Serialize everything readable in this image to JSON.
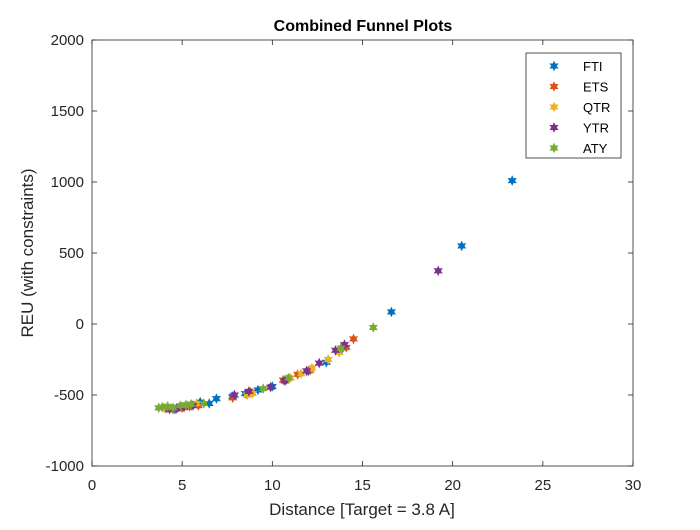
{
  "chart_data": {
    "type": "scatter",
    "title": "Combined Funnel Plots",
    "xlabel": "Distance [Target = 3.8 A]",
    "ylabel": "REU (with constraints)",
    "xlim": [
      0,
      30
    ],
    "ylim": [
      -1000,
      2000
    ],
    "xticks": [
      0,
      5,
      10,
      15,
      20,
      25,
      30
    ],
    "yticks": [
      -1000,
      -500,
      0,
      500,
      1000,
      1500,
      2000
    ],
    "grid": false,
    "legend_position": "top-right",
    "marker": "hexagram",
    "series": [
      {
        "name": "FTI",
        "color": "#0072BD",
        "x": [
          4.2,
          4.6,
          5.0,
          5.5,
          6.0,
          6.5,
          6.9,
          7.8,
          8.5,
          9.2,
          10.0,
          10.8,
          12.0,
          13.0,
          13.9,
          16.6,
          20.5,
          23.3
        ],
        "y": [
          -590,
          -600,
          -585,
          -575,
          -550,
          -560,
          -525,
          -510,
          -490,
          -465,
          -440,
          -390,
          -330,
          -270,
          -170,
          85,
          550,
          1010
        ]
      },
      {
        "name": "ETS",
        "color": "#D95319",
        "x": [
          4.1,
          4.5,
          5.0,
          5.4,
          5.9,
          7.8,
          8.8,
          10.6,
          11.4,
          12.1,
          14.1,
          14.5
        ],
        "y": [
          -595,
          -600,
          -590,
          -580,
          -575,
          -520,
          -480,
          -395,
          -355,
          -325,
          -165,
          -105
        ]
      },
      {
        "name": "QTR",
        "color": "#EDB120",
        "x": [
          4.0,
          4.4,
          4.9,
          5.3,
          5.8,
          8.6,
          8.9,
          11.0,
          11.6,
          12.2,
          13.1,
          13.7
        ],
        "y": [
          -590,
          -595,
          -585,
          -575,
          -560,
          -500,
          -490,
          -380,
          -350,
          -310,
          -250,
          -200
        ]
      },
      {
        "name": "YTR",
        "color": "#7E2F8E",
        "x": [
          4.3,
          4.7,
          5.1,
          5.6,
          7.9,
          8.7,
          9.9,
          10.7,
          11.9,
          12.6,
          13.5,
          14.0,
          19.2
        ],
        "y": [
          -600,
          -595,
          -585,
          -575,
          -500,
          -475,
          -445,
          -400,
          -330,
          -275,
          -185,
          -145,
          375
        ]
      },
      {
        "name": "ATY",
        "color": "#77AC30",
        "x": [
          3.7,
          3.9,
          4.2,
          4.5,
          4.9,
          5.2,
          5.5,
          6.2,
          9.5,
          10.9,
          13.8,
          15.6
        ],
        "y": [
          -590,
          -585,
          -580,
          -590,
          -575,
          -570,
          -565,
          -560,
          -455,
          -380,
          -170,
          -25
        ]
      }
    ]
  }
}
